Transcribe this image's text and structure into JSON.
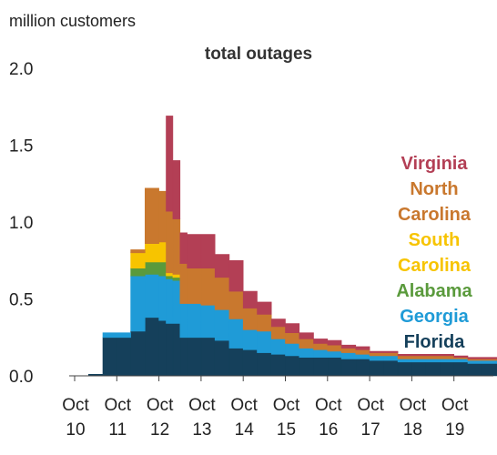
{
  "chart_data": {
    "type": "area",
    "title": "total outages",
    "ylabel": "million customers",
    "xlabel": "",
    "stacked": true,
    "step": true,
    "ylim": [
      0,
      2.0
    ],
    "yticks": [
      0.0,
      0.5,
      1.0,
      1.5,
      2.0
    ],
    "ytick_labels": [
      "0.0",
      "0.5",
      "1.0",
      "1.5",
      "2.0"
    ],
    "x_range": [
      0,
      10.5
    ],
    "xticks": [
      0,
      1,
      2,
      3,
      4,
      5,
      6,
      7,
      8,
      9
    ],
    "xtick_labels": [
      [
        "Oct",
        "10"
      ],
      [
        "Oct",
        "11"
      ],
      [
        "Oct",
        "12"
      ],
      [
        "Oct",
        "13"
      ],
      [
        "Oct",
        "14"
      ],
      [
        "Oct",
        "15"
      ],
      [
        "Oct",
        "16"
      ],
      [
        "Oct",
        "17"
      ],
      [
        "Oct",
        "18"
      ],
      [
        "Oct",
        "19"
      ]
    ],
    "x": [
      0,
      0.33,
      0.67,
      1.0,
      1.33,
      1.67,
      2.0,
      2.17,
      2.33,
      2.5,
      2.67,
      3.0,
      3.33,
      3.67,
      4.0,
      4.33,
      4.67,
      5.0,
      5.33,
      5.67,
      6.0,
      6.33,
      6.67,
      7.0,
      7.33,
      7.67,
      8.0,
      8.33,
      8.67,
      9.0,
      9.33,
      9.67,
      10.0,
      10.33
    ],
    "series": [
      {
        "name": "Florida",
        "color": "#15405b",
        "values": [
          0,
          0.01,
          0.25,
          0.25,
          0.29,
          0.38,
          0.36,
          0.34,
          0.34,
          0.25,
          0.25,
          0.25,
          0.23,
          0.18,
          0.17,
          0.15,
          0.14,
          0.13,
          0.12,
          0.12,
          0.12,
          0.11,
          0.11,
          0.1,
          0.1,
          0.09,
          0.09,
          0.09,
          0.09,
          0.09,
          0.08,
          0.08,
          0.08,
          0.08
        ]
      },
      {
        "name": "Georgia",
        "color": "#1f9bd7",
        "values": [
          0,
          0,
          0.03,
          0.03,
          0.36,
          0.28,
          0.29,
          0.29,
          0.28,
          0.22,
          0.22,
          0.21,
          0.2,
          0.19,
          0.13,
          0.14,
          0.1,
          0.08,
          0.06,
          0.05,
          0.04,
          0.04,
          0.03,
          0.03,
          0.03,
          0.02,
          0.02,
          0.02,
          0.02,
          0.02,
          0.02,
          0.02,
          0.02,
          0.02
        ]
      },
      {
        "name": "Alabama",
        "color": "#5a9a3c",
        "values": [
          0,
          0,
          0,
          0,
          0.05,
          0.08,
          0.09,
          0.02,
          0.02,
          0,
          0,
          0,
          0,
          0,
          0,
          0,
          0,
          0,
          0,
          0,
          0,
          0,
          0,
          0,
          0,
          0,
          0,
          0,
          0,
          0,
          0,
          0,
          0,
          0
        ]
      },
      {
        "name": "South Carolina",
        "color": "#f7c400",
        "values": [
          0,
          0,
          0,
          0,
          0.1,
          0.12,
          0.13,
          0.02,
          0.02,
          0,
          0,
          0,
          0,
          0,
          0,
          0,
          0,
          0,
          0,
          0,
          0,
          0,
          0,
          0,
          0,
          0,
          0,
          0,
          0,
          0,
          0,
          0,
          0,
          0
        ]
      },
      {
        "name": "North Carolina",
        "color": "#c9782e",
        "values": [
          0,
          0,
          0,
          0,
          0.02,
          0.36,
          0.33,
          0.4,
          0.36,
          0.26,
          0.23,
          0.24,
          0.21,
          0.18,
          0.14,
          0.11,
          0.08,
          0.07,
          0.06,
          0.04,
          0.04,
          0.03,
          0.03,
          0.02,
          0.02,
          0.02,
          0.02,
          0.02,
          0.02,
          0.01,
          0.01,
          0.01,
          0.01,
          0.01
        ]
      },
      {
        "name": "Virginia",
        "color": "#b33f55",
        "values": [
          0,
          0,
          0,
          0,
          0,
          0,
          0,
          0.62,
          0.38,
          0.2,
          0.22,
          0.22,
          0.15,
          0.2,
          0.11,
          0.08,
          0.05,
          0.06,
          0.04,
          0.03,
          0.03,
          0.02,
          0.02,
          0.01,
          0.01,
          0.01,
          0.01,
          0.01,
          0.01,
          0.01,
          0.01,
          0.01,
          0.01,
          0.01
        ]
      }
    ],
    "legend": {
      "placement": "right",
      "entries": [
        {
          "lines": [
            "Virginia"
          ],
          "color": "#b33f55"
        },
        {
          "lines": [
            "North",
            "Carolina"
          ],
          "color": "#c9782e"
        },
        {
          "lines": [
            "South",
            "Carolina"
          ],
          "color": "#f7c400"
        },
        {
          "lines": [
            "Alabama"
          ],
          "color": "#5a9a3c"
        },
        {
          "lines": [
            "Georgia"
          ],
          "color": "#1f9bd7"
        },
        {
          "lines": [
            "Florida"
          ],
          "color": "#15405b"
        }
      ]
    }
  }
}
